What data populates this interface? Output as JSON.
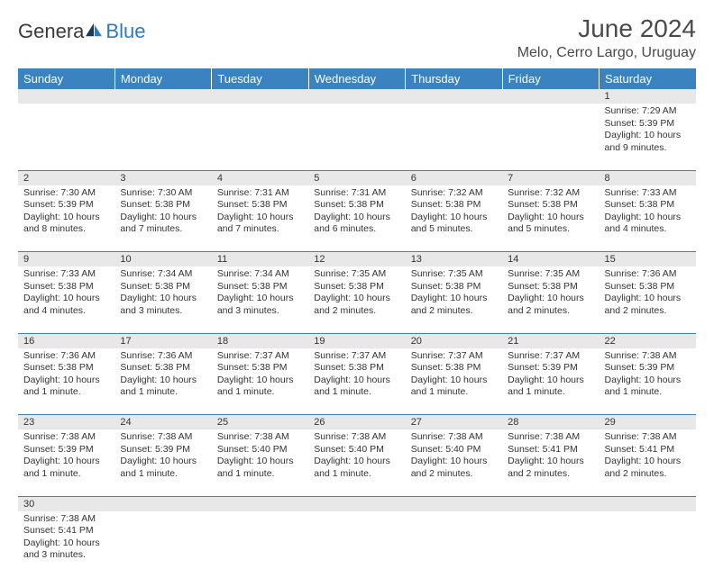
{
  "logo": {
    "text1": "Genera",
    "text2": "Blue"
  },
  "title": "June 2024",
  "location": "Melo, Cerro Largo, Uruguay",
  "colors": {
    "header_bg": "#3b83c0",
    "header_fg": "#ffffff",
    "daynum_bg": "#e8e8e8",
    "border": "#3b83c0",
    "text": "#333333",
    "logo_blue": "#2b7bbf"
  },
  "weekdays": [
    "Sunday",
    "Monday",
    "Tuesday",
    "Wednesday",
    "Thursday",
    "Friday",
    "Saturday"
  ],
  "weeks": [
    [
      null,
      null,
      null,
      null,
      null,
      null,
      {
        "day": 1,
        "sunrise": "7:29 AM",
        "sunset": "5:39 PM",
        "daylight": "10 hours and 9 minutes."
      }
    ],
    [
      {
        "day": 2,
        "sunrise": "7:30 AM",
        "sunset": "5:39 PM",
        "daylight": "10 hours and 8 minutes."
      },
      {
        "day": 3,
        "sunrise": "7:30 AM",
        "sunset": "5:38 PM",
        "daylight": "10 hours and 7 minutes."
      },
      {
        "day": 4,
        "sunrise": "7:31 AM",
        "sunset": "5:38 PM",
        "daylight": "10 hours and 7 minutes."
      },
      {
        "day": 5,
        "sunrise": "7:31 AM",
        "sunset": "5:38 PM",
        "daylight": "10 hours and 6 minutes."
      },
      {
        "day": 6,
        "sunrise": "7:32 AM",
        "sunset": "5:38 PM",
        "daylight": "10 hours and 5 minutes."
      },
      {
        "day": 7,
        "sunrise": "7:32 AM",
        "sunset": "5:38 PM",
        "daylight": "10 hours and 5 minutes."
      },
      {
        "day": 8,
        "sunrise": "7:33 AM",
        "sunset": "5:38 PM",
        "daylight": "10 hours and 4 minutes."
      }
    ],
    [
      {
        "day": 9,
        "sunrise": "7:33 AM",
        "sunset": "5:38 PM",
        "daylight": "10 hours and 4 minutes."
      },
      {
        "day": 10,
        "sunrise": "7:34 AM",
        "sunset": "5:38 PM",
        "daylight": "10 hours and 3 minutes."
      },
      {
        "day": 11,
        "sunrise": "7:34 AM",
        "sunset": "5:38 PM",
        "daylight": "10 hours and 3 minutes."
      },
      {
        "day": 12,
        "sunrise": "7:35 AM",
        "sunset": "5:38 PM",
        "daylight": "10 hours and 2 minutes."
      },
      {
        "day": 13,
        "sunrise": "7:35 AM",
        "sunset": "5:38 PM",
        "daylight": "10 hours and 2 minutes."
      },
      {
        "day": 14,
        "sunrise": "7:35 AM",
        "sunset": "5:38 PM",
        "daylight": "10 hours and 2 minutes."
      },
      {
        "day": 15,
        "sunrise": "7:36 AM",
        "sunset": "5:38 PM",
        "daylight": "10 hours and 2 minutes."
      }
    ],
    [
      {
        "day": 16,
        "sunrise": "7:36 AM",
        "sunset": "5:38 PM",
        "daylight": "10 hours and 1 minute."
      },
      {
        "day": 17,
        "sunrise": "7:36 AM",
        "sunset": "5:38 PM",
        "daylight": "10 hours and 1 minute."
      },
      {
        "day": 18,
        "sunrise": "7:37 AM",
        "sunset": "5:38 PM",
        "daylight": "10 hours and 1 minute."
      },
      {
        "day": 19,
        "sunrise": "7:37 AM",
        "sunset": "5:38 PM",
        "daylight": "10 hours and 1 minute."
      },
      {
        "day": 20,
        "sunrise": "7:37 AM",
        "sunset": "5:38 PM",
        "daylight": "10 hours and 1 minute."
      },
      {
        "day": 21,
        "sunrise": "7:37 AM",
        "sunset": "5:39 PM",
        "daylight": "10 hours and 1 minute."
      },
      {
        "day": 22,
        "sunrise": "7:38 AM",
        "sunset": "5:39 PM",
        "daylight": "10 hours and 1 minute."
      }
    ],
    [
      {
        "day": 23,
        "sunrise": "7:38 AM",
        "sunset": "5:39 PM",
        "daylight": "10 hours and 1 minute."
      },
      {
        "day": 24,
        "sunrise": "7:38 AM",
        "sunset": "5:39 PM",
        "daylight": "10 hours and 1 minute."
      },
      {
        "day": 25,
        "sunrise": "7:38 AM",
        "sunset": "5:40 PM",
        "daylight": "10 hours and 1 minute."
      },
      {
        "day": 26,
        "sunrise": "7:38 AM",
        "sunset": "5:40 PM",
        "daylight": "10 hours and 1 minute."
      },
      {
        "day": 27,
        "sunrise": "7:38 AM",
        "sunset": "5:40 PM",
        "daylight": "10 hours and 2 minutes."
      },
      {
        "day": 28,
        "sunrise": "7:38 AM",
        "sunset": "5:41 PM",
        "daylight": "10 hours and 2 minutes."
      },
      {
        "day": 29,
        "sunrise": "7:38 AM",
        "sunset": "5:41 PM",
        "daylight": "10 hours and 2 minutes."
      }
    ],
    [
      {
        "day": 30,
        "sunrise": "7:38 AM",
        "sunset": "5:41 PM",
        "daylight": "10 hours and 3 minutes."
      },
      null,
      null,
      null,
      null,
      null,
      null
    ]
  ],
  "labels": {
    "sunrise": "Sunrise:",
    "sunset": "Sunset:",
    "daylight": "Daylight:"
  }
}
